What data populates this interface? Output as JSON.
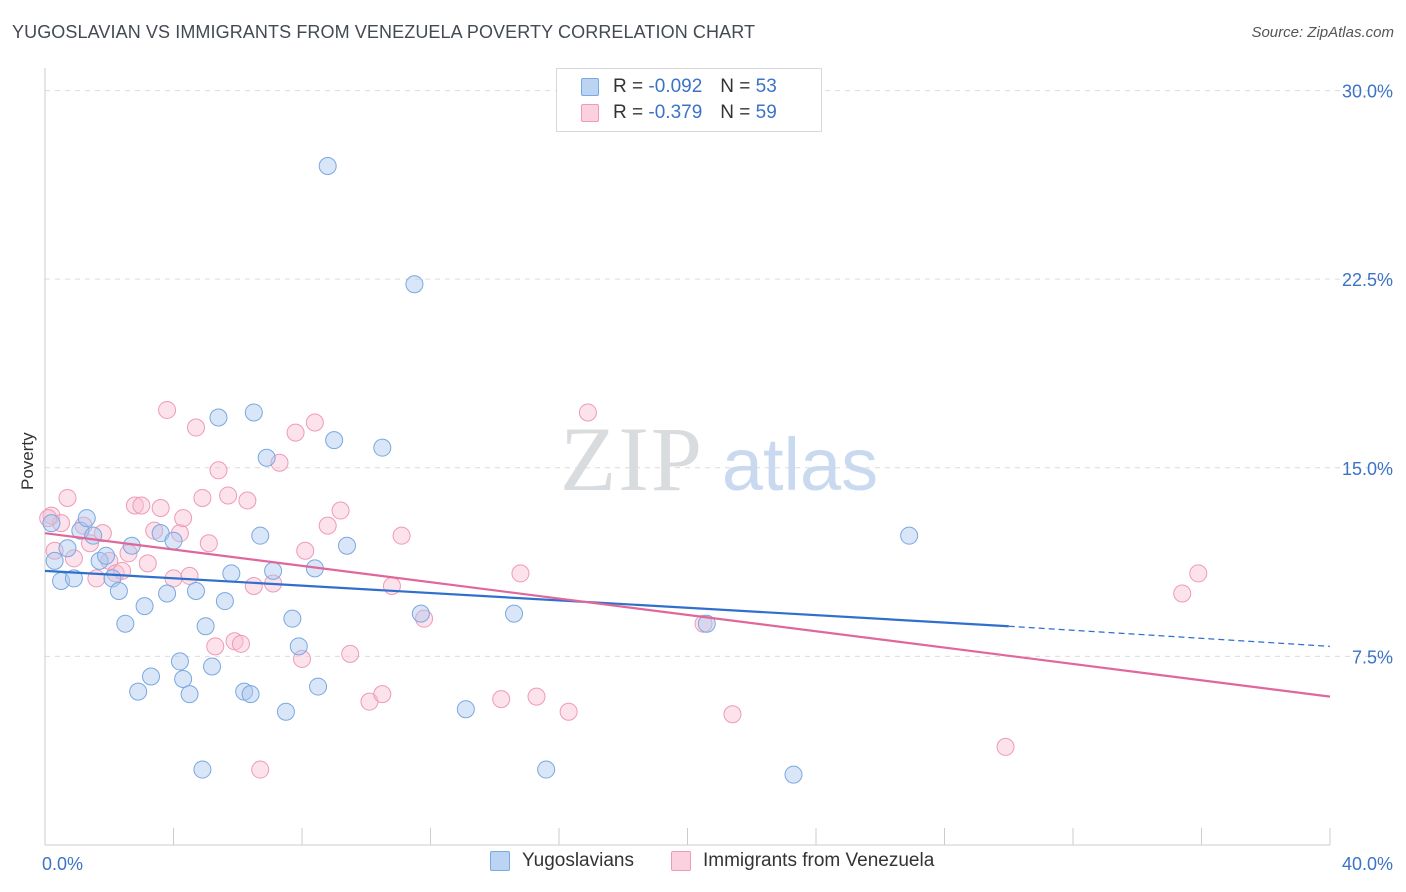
{
  "header": {
    "title": "YUGOSLAVIAN VS IMMIGRANTS FROM VENEZUELA POVERTY CORRELATION CHART",
    "source": "Source: ZipAtlas.com"
  },
  "watermark": {
    "zip": "ZIP",
    "atlas": "atlas"
  },
  "legend_top": {
    "rows": [
      {
        "r_label": "R =",
        "r_value": "-0.092",
        "n_label": "N =",
        "n_value": "53"
      },
      {
        "r_label": "R =",
        "r_value": "-0.379",
        "n_label": "N =",
        "n_value": "59"
      }
    ]
  },
  "chart_data": {
    "type": "scatter",
    "title": "YUGOSLAVIAN VS IMMIGRANTS FROM VENEZUELA POVERTY CORRELATION CHART",
    "xlabel": "",
    "ylabel": "Poverty",
    "xlim": [
      0,
      40
    ],
    "ylim": [
      0,
      30.5
    ],
    "x_tick_labels": [
      "0.0%",
      "40.0%"
    ],
    "y_ticks": [
      7.5,
      15.0,
      22.5,
      30.0
    ],
    "y_tick_labels": [
      "7.5%",
      "15.0%",
      "22.5%",
      "30.0%"
    ],
    "grid": true,
    "legend_position": "bottom",
    "colors": {
      "yugoslavians": "#7aa8e0",
      "venezuela": "#ef9ab8",
      "blue_line": "#2f6fce",
      "pink_line": "#e0679a"
    },
    "series": [
      {
        "name": "Yugoslavians",
        "r": -0.092,
        "n": 53,
        "trend": {
          "x0": 0,
          "y0": 10.9,
          "x1": 30,
          "y1": 8.7,
          "dashed_to_x": 40,
          "dashed_to_y": 7.9
        },
        "points": [
          [
            0.2,
            12.8
          ],
          [
            0.3,
            11.3
          ],
          [
            0.5,
            10.5
          ],
          [
            0.7,
            11.8
          ],
          [
            0.9,
            10.6
          ],
          [
            1.1,
            12.5
          ],
          [
            1.3,
            13.0
          ],
          [
            1.5,
            12.3
          ],
          [
            1.7,
            11.3
          ],
          [
            1.9,
            11.5
          ],
          [
            2.1,
            10.6
          ],
          [
            2.3,
            10.1
          ],
          [
            2.5,
            8.8
          ],
          [
            2.7,
            11.9
          ],
          [
            2.9,
            6.1
          ],
          [
            3.1,
            9.5
          ],
          [
            3.3,
            6.7
          ],
          [
            3.6,
            12.4
          ],
          [
            3.8,
            10.0
          ],
          [
            4.0,
            12.1
          ],
          [
            4.2,
            7.3
          ],
          [
            4.3,
            6.6
          ],
          [
            4.5,
            6.0
          ],
          [
            4.7,
            10.1
          ],
          [
            4.9,
            3.0
          ],
          [
            5.0,
            8.7
          ],
          [
            5.2,
            7.1
          ],
          [
            5.4,
            17.0
          ],
          [
            5.6,
            9.7
          ],
          [
            5.8,
            10.8
          ],
          [
            6.2,
            6.1
          ],
          [
            6.4,
            6.0
          ],
          [
            6.5,
            17.2
          ],
          [
            6.7,
            12.3
          ],
          [
            6.9,
            15.4
          ],
          [
            7.1,
            10.9
          ],
          [
            7.5,
            5.3
          ],
          [
            7.7,
            9.0
          ],
          [
            7.9,
            7.9
          ],
          [
            8.4,
            11.0
          ],
          [
            8.5,
            6.3
          ],
          [
            8.8,
            27.0
          ],
          [
            9.0,
            16.1
          ],
          [
            9.4,
            11.9
          ],
          [
            10.5,
            15.8
          ],
          [
            11.5,
            22.3
          ],
          [
            11.7,
            9.2
          ],
          [
            13.1,
            5.4
          ],
          [
            14.6,
            9.2
          ],
          [
            15.6,
            3.0
          ],
          [
            20.6,
            8.8
          ],
          [
            23.3,
            2.8
          ],
          [
            26.9,
            12.3
          ]
        ]
      },
      {
        "name": "Immigrants from Venezuela",
        "r": -0.379,
        "n": 59,
        "trend": {
          "x0": 0,
          "y0": 12.4,
          "x1": 40,
          "y1": 5.9
        },
        "points": [
          [
            0.2,
            13.1
          ],
          [
            0.3,
            11.7
          ],
          [
            0.5,
            12.8
          ],
          [
            0.7,
            13.8
          ],
          [
            0.9,
            11.4
          ],
          [
            1.2,
            12.7
          ],
          [
            1.4,
            12.0
          ],
          [
            1.6,
            10.6
          ],
          [
            1.8,
            12.4
          ],
          [
            2.0,
            11.3
          ],
          [
            2.2,
            10.8
          ],
          [
            2.4,
            10.9
          ],
          [
            2.6,
            11.6
          ],
          [
            2.8,
            13.5
          ],
          [
            3.0,
            13.5
          ],
          [
            3.2,
            11.2
          ],
          [
            3.4,
            12.5
          ],
          [
            3.6,
            13.4
          ],
          [
            3.8,
            17.3
          ],
          [
            4.0,
            10.6
          ],
          [
            4.2,
            12.4
          ],
          [
            4.3,
            13.0
          ],
          [
            4.5,
            10.7
          ],
          [
            4.7,
            16.6
          ],
          [
            4.9,
            13.8
          ],
          [
            5.1,
            12.0
          ],
          [
            5.3,
            7.9
          ],
          [
            5.4,
            14.9
          ],
          [
            5.7,
            13.9
          ],
          [
            5.9,
            8.1
          ],
          [
            6.1,
            8.0
          ],
          [
            6.3,
            13.7
          ],
          [
            6.5,
            10.3
          ],
          [
            6.7,
            3.0
          ],
          [
            7.1,
            10.4
          ],
          [
            7.3,
            15.2
          ],
          [
            7.8,
            16.4
          ],
          [
            8.0,
            7.4
          ],
          [
            8.1,
            11.7
          ],
          [
            8.4,
            16.8
          ],
          [
            8.8,
            12.7
          ],
          [
            9.2,
            13.3
          ],
          [
            9.5,
            7.6
          ],
          [
            10.1,
            5.7
          ],
          [
            10.5,
            6.0
          ],
          [
            10.8,
            10.3
          ],
          [
            11.1,
            12.3
          ],
          [
            11.8,
            9.0
          ],
          [
            14.2,
            5.8
          ],
          [
            14.8,
            10.8
          ],
          [
            15.3,
            5.9
          ],
          [
            16.3,
            5.3
          ],
          [
            16.9,
            17.2
          ],
          [
            20.5,
            8.8
          ],
          [
            21.4,
            5.2
          ],
          [
            29.9,
            3.9
          ],
          [
            35.4,
            10.0
          ],
          [
            35.9,
            10.8
          ],
          [
            0.1,
            13.0
          ]
        ]
      }
    ]
  }
}
